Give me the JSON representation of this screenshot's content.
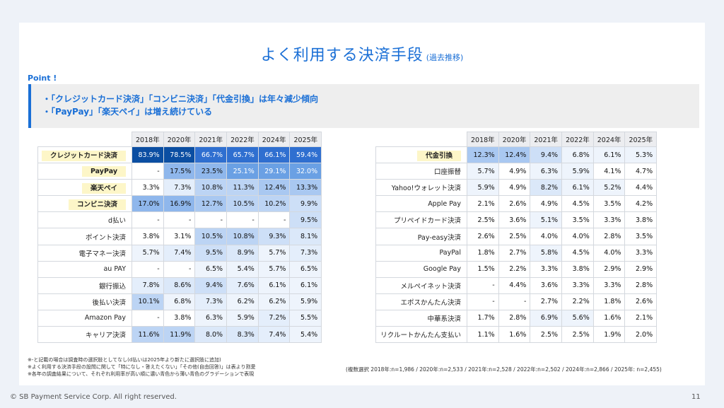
{
  "title": {
    "main": "よく利用する決済手段",
    "sub": "(過去推移)"
  },
  "point": {
    "label": "Point !",
    "items": [
      "「クレジットカード決済」「コンビニ決済」「代金引換」は年々減少傾向",
      "「PayPay」「楽天ペイ」は増え続けている"
    ]
  },
  "years": [
    "2018年",
    "2020年",
    "2021年",
    "2022年",
    "2024年",
    "2025年"
  ],
  "left_table": [
    {
      "label": "クレジットカード決済",
      "highlight": true,
      "values": [
        "83.9%",
        "78.5%",
        "66.7%",
        "65.7%",
        "66.1%",
        "59.4%"
      ]
    },
    {
      "label": "PayPay",
      "highlight": true,
      "values": [
        "-",
        "17.5%",
        "23.5%",
        "25.1%",
        "29.1%",
        "32.0%"
      ]
    },
    {
      "label": "楽天ペイ",
      "highlight": true,
      "values": [
        "3.3%",
        "7.3%",
        "10.8%",
        "11.3%",
        "12.4%",
        "13.3%"
      ]
    },
    {
      "label": "コンビニ決済",
      "highlight": true,
      "values": [
        "17.0%",
        "16.9%",
        "12.7%",
        "10.5%",
        "10.2%",
        "9.9%"
      ]
    },
    {
      "label": "d払い",
      "highlight": false,
      "values": [
        "-",
        "-",
        "-",
        "-",
        "-",
        "9.5%"
      ]
    },
    {
      "label": "ポイント決済",
      "highlight": false,
      "values": [
        "3.8%",
        "3.1%",
        "10.5%",
        "10.8%",
        "9.3%",
        "8.1%"
      ]
    },
    {
      "label": "電子マネー決済",
      "highlight": false,
      "values": [
        "5.7%",
        "7.4%",
        "9.5%",
        "8.9%",
        "5.7%",
        "7.3%"
      ]
    },
    {
      "label": "au PAY",
      "highlight": false,
      "values": [
        "-",
        "-",
        "6.5%",
        "5.4%",
        "5.7%",
        "6.5%"
      ]
    },
    {
      "label": "銀行振込",
      "highlight": false,
      "values": [
        "7.8%",
        "8.6%",
        "9.4%",
        "7.6%",
        "6.1%",
        "6.1%"
      ]
    },
    {
      "label": "後払い決済",
      "highlight": false,
      "values": [
        "10.1%",
        "6.8%",
        "7.3%",
        "6.2%",
        "6.2%",
        "5.9%"
      ]
    },
    {
      "label": "Amazon Pay",
      "highlight": false,
      "values": [
        "-",
        "3.8%",
        "6.3%",
        "5.9%",
        "7.2%",
        "5.5%"
      ]
    },
    {
      "label": "キャリア決済",
      "highlight": false,
      "values": [
        "11.6%",
        "11.9%",
        "8.0%",
        "8.3%",
        "7.4%",
        "5.4%"
      ]
    }
  ],
  "right_table": [
    {
      "label": "代金引換",
      "highlight": true,
      "values": [
        "12.3%",
        "12.4%",
        "9.4%",
        "6.8%",
        "6.1%",
        "5.3%"
      ]
    },
    {
      "label": "口座振替",
      "highlight": false,
      "values": [
        "5.7%",
        "4.9%",
        "6.3%",
        "5.9%",
        "4.1%",
        "4.7%"
      ]
    },
    {
      "label": "Yahoo!ウォレット決済",
      "highlight": false,
      "values": [
        "5.9%",
        "4.9%",
        "8.2%",
        "6.1%",
        "5.2%",
        "4.4%"
      ]
    },
    {
      "label": "Apple Pay",
      "highlight": false,
      "values": [
        "2.1%",
        "2.6%",
        "4.9%",
        "4.5%",
        "3.5%",
        "4.2%"
      ]
    },
    {
      "label": "プリペイドカード決済",
      "highlight": false,
      "values": [
        "2.5%",
        "3.6%",
        "5.1%",
        "3.5%",
        "3.3%",
        "3.8%"
      ]
    },
    {
      "label": "Pay-easy決済",
      "highlight": false,
      "values": [
        "2.6%",
        "2.5%",
        "4.0%",
        "4.0%",
        "2.8%",
        "3.5%"
      ]
    },
    {
      "label": "PayPal",
      "highlight": false,
      "values": [
        "1.8%",
        "2.7%",
        "5.8%",
        "4.5%",
        "4.0%",
        "3.3%"
      ]
    },
    {
      "label": "Google Pay",
      "highlight": false,
      "values": [
        "1.5%",
        "2.2%",
        "3.3%",
        "3.8%",
        "2.9%",
        "2.9%"
      ]
    },
    {
      "label": "メルペイネット決済",
      "highlight": false,
      "values": [
        "-",
        "4.4%",
        "3.6%",
        "3.3%",
        "3.3%",
        "2.8%"
      ]
    },
    {
      "label": "エポスかんたん決済",
      "highlight": false,
      "values": [
        "-",
        "-",
        "2.7%",
        "2.2%",
        "1.8%",
        "2.6%"
      ]
    },
    {
      "label": "中華系決済",
      "highlight": false,
      "values": [
        "1.7%",
        "2.8%",
        "6.9%",
        "5.6%",
        "1.6%",
        "2.1%"
      ]
    },
    {
      "label": "リクルートかんたん支払い",
      "highlight": false,
      "values": [
        "1.1%",
        "1.6%",
        "2.5%",
        "2.5%",
        "1.9%",
        "2.0%"
      ]
    }
  ],
  "notes": [
    "※-と記載の場合は調査時の選択肢としてなし(d払いは2025年より新たに選択肢に追加)",
    "※よく利用する決済手段の設問に関して「特になし・答えたくない」「その他(自由回答)」は表より割愛",
    "※各年の調査結果について、それぞれ利用率が高い順に濃い青色から薄い青色のグラデーションで表現"
  ],
  "sample_note": "(複数選択 2018年:n=1,986 / 2020年:n=2,533 / 2021年:n=2,528 / 2022年:n=2,502 / 2024年:n=2,866 / 2025年: n=2,455)",
  "footer": {
    "copyright": "© SB Payment Service Corp. All right reserved.",
    "page": "11"
  }
}
